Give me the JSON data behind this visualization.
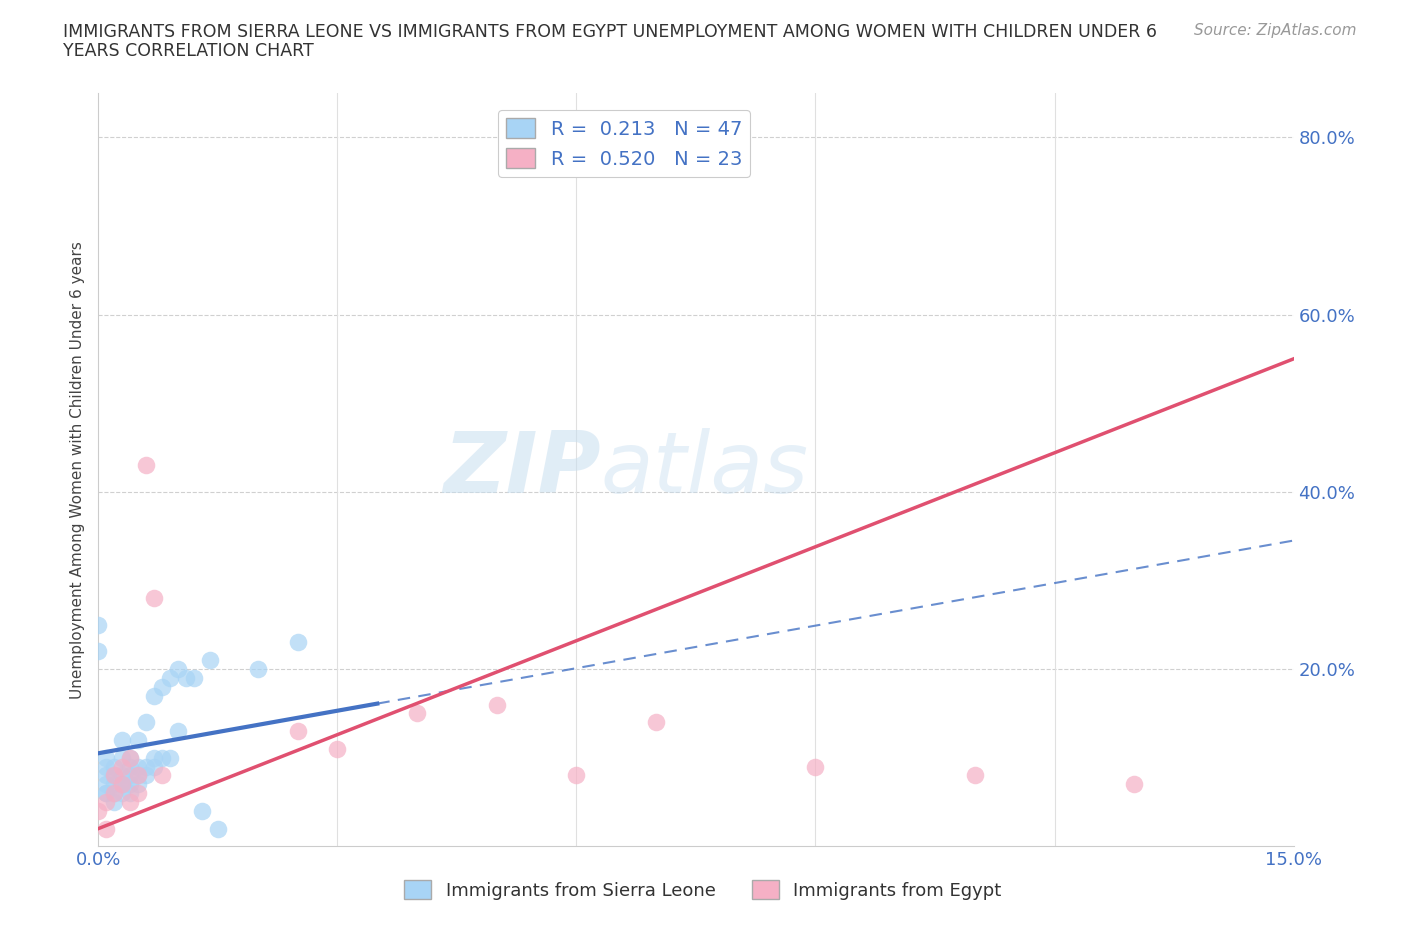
{
  "title_line1": "IMMIGRANTS FROM SIERRA LEONE VS IMMIGRANTS FROM EGYPT UNEMPLOYMENT AMONG WOMEN WITH CHILDREN UNDER 6",
  "title_line2": "YEARS CORRELATION CHART",
  "source_text": "Source: ZipAtlas.com",
  "ylabel": "Unemployment Among Women with Children Under 6 years",
  "watermark": "ZIPatlas",
  "xlim": [
    0,
    0.15
  ],
  "ylim": [
    0,
    0.85
  ],
  "sierra_leone_color": "#a8d4f5",
  "sierra_leone_edge": "#7ab8e8",
  "egypt_color": "#f5b0c5",
  "egypt_edge": "#e880a0",
  "sierra_leone_line_color": "#4472c4",
  "egypt_line_color": "#e05070",
  "sierra_leone_x": [
    0.0,
    0.0,
    0.001,
    0.001,
    0.001,
    0.001,
    0.001,
    0.001,
    0.002,
    0.002,
    0.002,
    0.002,
    0.002,
    0.003,
    0.003,
    0.003,
    0.003,
    0.003,
    0.003,
    0.004,
    0.004,
    0.004,
    0.004,
    0.004,
    0.005,
    0.005,
    0.005,
    0.005,
    0.006,
    0.006,
    0.006,
    0.007,
    0.007,
    0.007,
    0.008,
    0.008,
    0.009,
    0.009,
    0.01,
    0.01,
    0.011,
    0.012,
    0.013,
    0.014,
    0.015,
    0.02,
    0.025
  ],
  "sierra_leone_y": [
    0.22,
    0.25,
    0.06,
    0.06,
    0.07,
    0.08,
    0.09,
    0.1,
    0.05,
    0.06,
    0.07,
    0.08,
    0.09,
    0.06,
    0.07,
    0.07,
    0.08,
    0.1,
    0.12,
    0.06,
    0.07,
    0.08,
    0.09,
    0.1,
    0.07,
    0.08,
    0.09,
    0.12,
    0.08,
    0.09,
    0.14,
    0.09,
    0.1,
    0.17,
    0.1,
    0.18,
    0.1,
    0.19,
    0.13,
    0.2,
    0.19,
    0.19,
    0.04,
    0.21,
    0.02,
    0.2,
    0.23
  ],
  "egypt_x": [
    0.0,
    0.001,
    0.001,
    0.002,
    0.002,
    0.003,
    0.003,
    0.004,
    0.004,
    0.005,
    0.005,
    0.006,
    0.007,
    0.008,
    0.025,
    0.03,
    0.04,
    0.05,
    0.06,
    0.07,
    0.09,
    0.11,
    0.13
  ],
  "egypt_y": [
    0.04,
    0.02,
    0.05,
    0.06,
    0.08,
    0.07,
    0.09,
    0.05,
    0.1,
    0.06,
    0.08,
    0.43,
    0.28,
    0.08,
    0.13,
    0.11,
    0.15,
    0.16,
    0.08,
    0.14,
    0.09,
    0.08,
    0.07
  ],
  "sl_line_x0": 0.0,
  "sl_line_y0": 0.105,
  "sl_line_x1": 0.15,
  "sl_line_y1": 0.345,
  "eg_line_x0": 0.0,
  "eg_line_y0": 0.02,
  "eg_line_x1": 0.15,
  "eg_line_y1": 0.55,
  "background_color": "#ffffff",
  "grid_color": "#e0e0e0",
  "grid_color_dashed": "#d0d0d0"
}
